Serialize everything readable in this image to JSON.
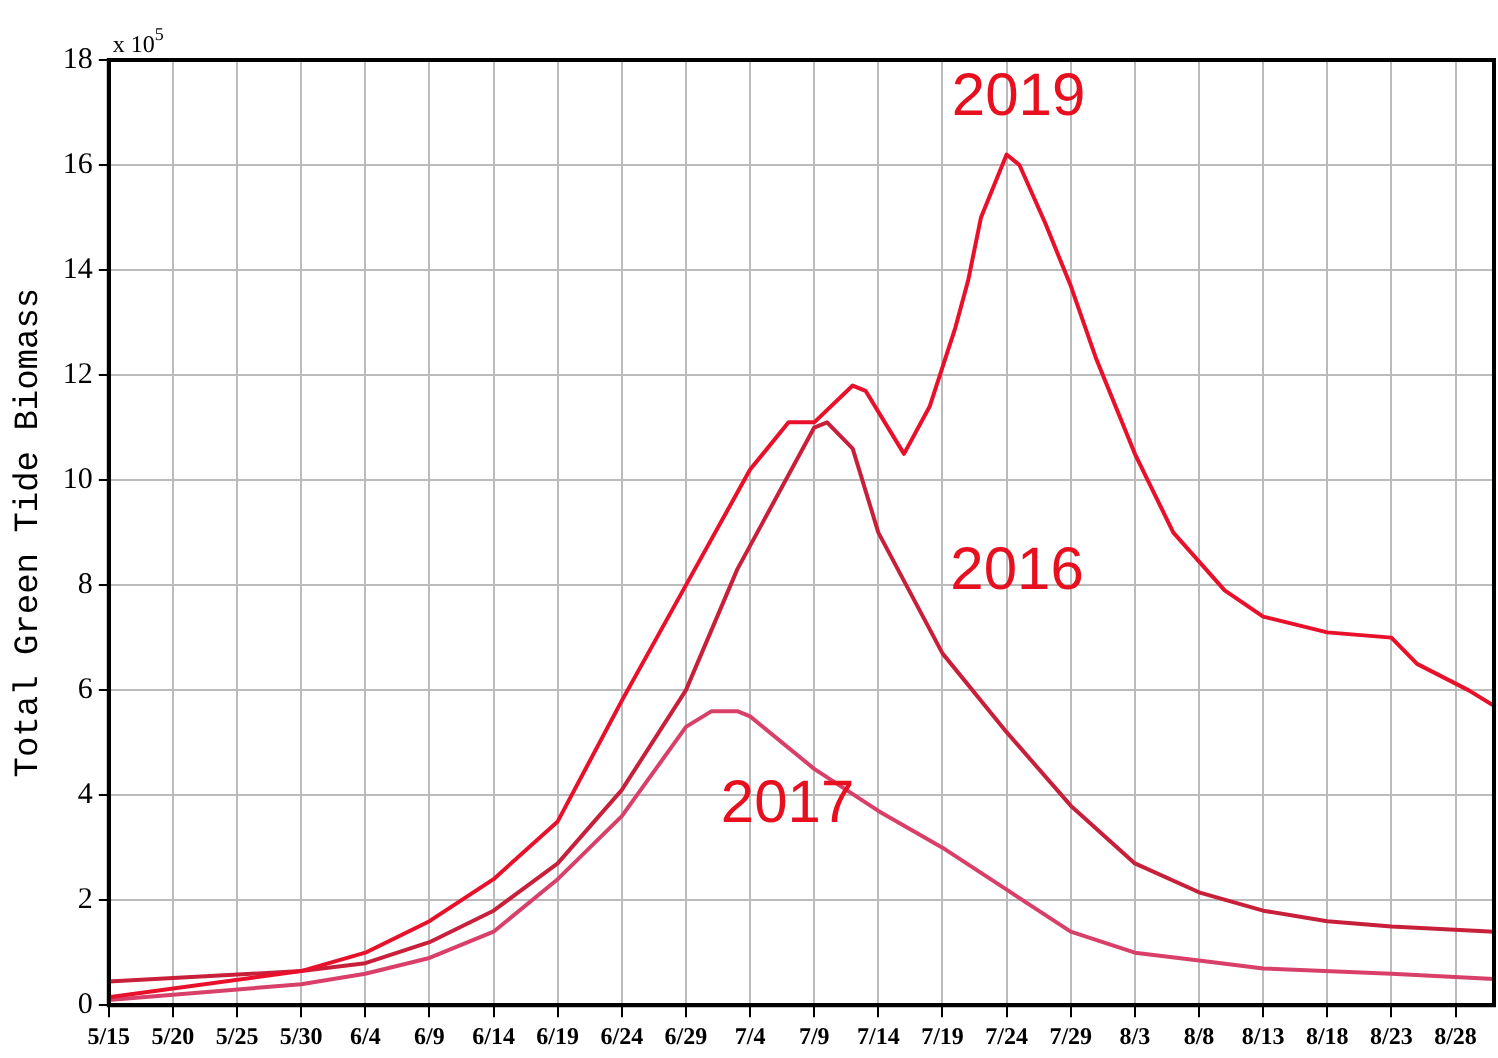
{
  "chart_data": {
    "type": "line",
    "ylabel": "Total Green Tide Biomass",
    "annotations": [
      "x 10$^{5}$"
    ],
    "series": [
      {
        "name": "2019",
        "color": "#e8102a",
        "x": [
          "--05-15",
          "--05-30",
          "--06-04",
          "--06-09",
          "--06-14",
          "--06-19",
          "--06-24",
          "--06-29",
          "--07-04",
          "--07-07",
          "--07-09",
          "--07-12",
          "--07-13",
          "--07-16",
          "--07-18",
          "--07-20",
          "--07-21",
          "--07-22",
          "--07-24",
          "--07-25",
          "--07-27",
          "--07-29",
          "--07-31",
          "--08-03",
          "--08-06",
          "--08-10",
          "--08-13",
          "--08-18",
          "--08-23",
          "--08-25",
          "--08-29",
          "--08-31"
        ],
        "values": [
          0.15,
          0.65,
          1.0,
          1.6,
          2.4,
          3.5,
          5.8,
          8.0,
          10.2,
          11.1,
          11.1,
          11.8,
          11.7,
          10.5,
          11.4,
          12.9,
          13.8,
          15.0,
          16.2,
          16.0,
          14.9,
          13.7,
          12.3,
          10.5,
          9.0,
          7.9,
          7.4,
          7.1,
          7.0,
          6.5,
          6.0,
          5.7
        ]
      },
      {
        "name": "2016",
        "color": "#c8203a",
        "x": [
          "--05-15",
          "--05-30",
          "--06-04",
          "--06-09",
          "--06-14",
          "--06-19",
          "--06-24",
          "--06-29",
          "--07-03",
          "--07-05",
          "--07-09",
          "--07-10",
          "--07-12",
          "--07-14",
          "--07-19",
          "--07-24",
          "--07-29",
          "--08-03",
          "--08-08",
          "--08-13",
          "--08-18",
          "--08-23",
          "--08-31"
        ],
        "values": [
          0.45,
          0.65,
          0.8,
          1.2,
          1.8,
          2.7,
          4.1,
          6.0,
          8.3,
          9.2,
          11.0,
          11.1,
          10.6,
          9.0,
          6.7,
          5.2,
          3.8,
          2.7,
          2.15,
          1.8,
          1.6,
          1.5,
          1.4
        ]
      },
      {
        "name": "2017",
        "color": "#d8406a",
        "x": [
          "--05-15",
          "--05-30",
          "--06-04",
          "--06-09",
          "--06-14",
          "--06-19",
          "--06-24",
          "--06-29",
          "--07-01",
          "--07-03",
          "--07-04",
          "--07-09",
          "--07-14",
          "--07-19",
          "--07-24",
          "--07-29",
          "--08-03",
          "--08-08",
          "--08-13",
          "--08-23",
          "--08-31"
        ],
        "values": [
          0.1,
          0.4,
          0.6,
          0.9,
          1.4,
          2.4,
          3.6,
          5.3,
          5.6,
          5.6,
          5.5,
          4.5,
          3.7,
          3.0,
          2.2,
          1.4,
          1.0,
          0.85,
          0.7,
          0.6,
          0.5
        ]
      }
    ],
    "xlim": [
      "--05-15",
      "--08-31"
    ],
    "xticks": [
      {
        "value": "--05-15",
        "label": "5/15"
      },
      {
        "value": "--05-20",
        "label": "5/20"
      },
      {
        "value": "--05-25",
        "label": "5/25"
      },
      {
        "value": "--05-30",
        "label": "5/30"
      },
      {
        "value": "--06-04",
        "label": "6/4"
      },
      {
        "value": "--06-09",
        "label": "6/9"
      },
      {
        "value": "--06-14",
        "label": "6/14"
      },
      {
        "value": "--06-19",
        "label": "6/19"
      },
      {
        "value": "--06-24",
        "label": "6/24"
      },
      {
        "value": "--06-29",
        "label": "6/29"
      },
      {
        "value": "--07-04",
        "label": "7/4"
      },
      {
        "value": "--07-09",
        "label": "7/9"
      },
      {
        "value": "--07-14",
        "label": "7/14"
      },
      {
        "value": "--07-19",
        "label": "7/19"
      },
      {
        "value": "--07-24",
        "label": "7/24"
      },
      {
        "value": "--07-29",
        "label": "7/29"
      },
      {
        "value": "--08-03",
        "label": "8/3"
      },
      {
        "value": "--08-08",
        "label": "8/8"
      },
      {
        "value": "--08-13",
        "label": "8/13"
      },
      {
        "value": "--08-18",
        "label": "8/18"
      },
      {
        "value": "--08-23",
        "label": "8/23"
      },
      {
        "value": "--08-28",
        "label": "8/28"
      }
    ],
    "ylim": [
      0,
      18
    ],
    "yticks": [
      0,
      2,
      4,
      6,
      8,
      10,
      12,
      14,
      16,
      18
    ],
    "grid": true,
    "legend": false,
    "marker": "none",
    "line_style": "solid"
  }
}
